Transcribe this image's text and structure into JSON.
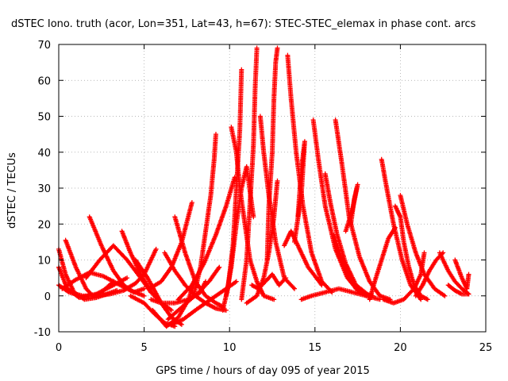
{
  "chart_data": {
    "type": "scatter",
    "title": "dSTEC Iono. truth (acor, Lon=351, Lat=43, h=67): STEC-STEC_elemax in phase cont. arcs",
    "xlabel": "GPS time / hours of day 095 of year 2015",
    "ylabel": "dSTEC  / TECUs",
    "xlim": [
      0,
      25
    ],
    "ylim": [
      -10,
      70
    ],
    "xticks": [
      0,
      5,
      10,
      15,
      20,
      25
    ],
    "yticks": [
      -10,
      0,
      10,
      20,
      30,
      40,
      50,
      60,
      70
    ],
    "grid": true,
    "marker": "+",
    "color": "#ff0000",
    "arcs": [
      {
        "x": [
          0.0,
          0.4,
          0.9,
          1.5,
          2.2,
          2.8,
          3.4
        ],
        "y": [
          13,
          6,
          1,
          -1,
          -0.5,
          0.5,
          1.5
        ]
      },
      {
        "x": [
          0.0,
          0.5,
          1.2,
          2.2,
          3.2,
          4.0
        ],
        "y": [
          8,
          2,
          -0.5,
          0.5,
          3,
          5
        ]
      },
      {
        "x": [
          0.4,
          1.0,
          1.6,
          2.0,
          2.5,
          3.2
        ],
        "y": [
          15.5,
          8,
          2,
          0,
          1,
          4
        ]
      },
      {
        "x": [
          0.2,
          1.0,
          1.8,
          2.6,
          3.4,
          4.2,
          5.0
        ],
        "y": [
          2,
          4.5,
          6.5,
          5.5,
          3.5,
          1.5,
          0
        ]
      },
      {
        "x": [
          1.8,
          2.5,
          3.2,
          3.8,
          4.4,
          5.0
        ],
        "y": [
          22,
          14,
          7,
          3,
          1,
          2
        ]
      },
      {
        "x": [
          1.6,
          2.4,
          3.2,
          4.0,
          4.8,
          5.4
        ],
        "y": [
          5,
          10,
          14,
          10,
          5,
          1
        ]
      },
      {
        "x": [
          3.7,
          4.2,
          4.8,
          5.4,
          6.0,
          6.6
        ],
        "y": [
          18,
          12,
          6,
          1,
          -2,
          -4
        ]
      },
      {
        "x": [
          4.5,
          5.2,
          6.0,
          6.6,
          7.2
        ],
        "y": [
          10,
          5,
          -2,
          -6,
          -8
        ]
      },
      {
        "x": [
          4.2,
          5.0,
          5.6,
          6.2,
          6.8
        ],
        "y": [
          0,
          -2,
          -5,
          -7.5,
          -8.5
        ]
      },
      {
        "x": [
          5.7,
          5.3,
          5.0,
          4.5,
          3.8,
          3.0,
          2.2,
          1.4,
          0.6,
          0.0
        ],
        "y": [
          13,
          9,
          6,
          3.5,
          1.5,
          0.5,
          0,
          0,
          1,
          3
        ]
      },
      {
        "x": [
          6.2,
          6.8,
          7.4,
          8.0,
          8.6,
          9.2,
          9.8
        ],
        "y": [
          12,
          7,
          3,
          0,
          -2,
          -3.5,
          -4
        ]
      },
      {
        "x": [
          6.8,
          7.4,
          8.0,
          8.6,
          9.2,
          9.6
        ],
        "y": [
          22,
          12,
          4,
          0,
          -2,
          -3
        ]
      },
      {
        "x": [
          5.5,
          6.3,
          7.0,
          7.6,
          8.0
        ],
        "y": [
          -4,
          -8.5,
          -6,
          -1,
          5
        ]
      },
      {
        "x": [
          6.6,
          7.3,
          8.0,
          8.6,
          9.2,
          9.8,
          10.4
        ],
        "y": [
          -8,
          -6.5,
          -4,
          -2,
          0,
          2,
          4
        ]
      },
      {
        "x": [
          6.4,
          7.0,
          7.6,
          8.2,
          8.8,
          9.4
        ],
        "y": [
          -6.5,
          -4,
          -1.5,
          1,
          4,
          8
        ]
      },
      {
        "x": [
          7.8,
          7.2,
          6.6,
          6.0,
          5.3
        ],
        "y": [
          26,
          15,
          8,
          4,
          2
        ]
      },
      {
        "x": [
          7.9,
          8.3,
          8.6,
          8.9,
          9.1,
          9.2
        ],
        "y": [
          0,
          8,
          18,
          28,
          38,
          45
        ]
      },
      {
        "x": [
          7.0,
          7.8,
          8.5,
          9.2,
          9.8,
          10.3
        ],
        "y": [
          -1,
          3,
          9,
          17,
          25,
          33
        ]
      },
      {
        "x": [
          8.6,
          8.3,
          7.6,
          6.8,
          6.0,
          5.4
        ],
        "y": [
          4,
          1,
          -1,
          -2,
          -2,
          -1
        ]
      },
      {
        "x": [
          9.6,
          9.9,
          10.2,
          10.4,
          10.6,
          10.7
        ],
        "y": [
          -4,
          2,
          14,
          30,
          46,
          63
        ]
      },
      {
        "x": [
          9.8,
          10.1,
          10.4,
          10.7,
          11.0,
          11.4
        ],
        "y": [
          0,
          8,
          20,
          30,
          36,
          22
        ]
      },
      {
        "x": [
          10.1,
          10.4,
          10.6,
          10.9,
          11.2,
          11.6,
          12.0,
          12.6
        ],
        "y": [
          47,
          40,
          30,
          20,
          10,
          4,
          0,
          -1
        ]
      },
      {
        "x": [
          10.7,
          11.0,
          11.2,
          11.4,
          11.5,
          11.6
        ],
        "y": [
          -1,
          10,
          26,
          42,
          58,
          69
        ]
      },
      {
        "x": [
          11.3,
          11.7,
          12.1,
          12.5,
          12.9,
          13.3
        ],
        "y": [
          3,
          2,
          4,
          6,
          3,
          5
        ]
      },
      {
        "x": [
          11.8,
          12.0,
          12.3,
          12.7,
          13.2,
          13.8
        ],
        "y": [
          50,
          40,
          28,
          15,
          5,
          2
        ]
      },
      {
        "x": [
          12.2,
          12.3,
          12.5,
          12.6,
          12.7,
          12.8
        ],
        "y": [
          10,
          25,
          40,
          55,
          65,
          69
        ]
      },
      {
        "x": [
          12.8,
          12.6,
          12.3,
          12.0,
          11.6,
          11.0
        ],
        "y": [
          32,
          22,
          12,
          5,
          0,
          -2
        ]
      },
      {
        "x": [
          13.4,
          13.6,
          13.9,
          14.3,
          14.8,
          15.4,
          16.0
        ],
        "y": [
          67,
          55,
          40,
          25,
          12,
          4,
          1
        ]
      },
      {
        "x": [
          13.2,
          13.6,
          14.0,
          14.6,
          15.4
        ],
        "y": [
          14,
          18,
          14,
          8,
          3
        ]
      },
      {
        "x": [
          14.0,
          14.2,
          14.4,
          14.2,
          13.8
        ],
        "y": [
          22,
          35,
          43,
          28,
          15
        ]
      },
      {
        "x": [
          14.2,
          14.8,
          15.6,
          16.4,
          17.2,
          18.0
        ],
        "y": [
          -1,
          0,
          1,
          2,
          1,
          0
        ]
      },
      {
        "x": [
          14.9,
          15.2,
          15.6,
          16.2,
          16.9,
          17.6,
          18.4
        ],
        "y": [
          49,
          38,
          25,
          13,
          5,
          1,
          0
        ]
      },
      {
        "x": [
          15.6,
          15.9,
          16.3,
          16.8,
          17.4,
          18.2
        ],
        "y": [
          34,
          26,
          17,
          9,
          3,
          0
        ]
      },
      {
        "x": [
          16.1,
          16.5,
          16.9,
          17.4,
          18.0,
          18.8
        ],
        "y": [
          17,
          11,
          6,
          2,
          0,
          -1
        ]
      },
      {
        "x": [
          16.2,
          16.6,
          17.0,
          17.6,
          18.2,
          18.8,
          19.4
        ],
        "y": [
          49,
          36,
          22,
          11,
          4,
          0,
          -1
        ]
      },
      {
        "x": [
          17.1,
          17.3,
          17.5,
          17.2,
          16.8
        ],
        "y": [
          20,
          27,
          31,
          24,
          18
        ]
      },
      {
        "x": [
          18.2,
          18.5,
          18.9,
          19.3,
          19.7
        ],
        "y": [
          -1,
          4,
          10,
          16,
          19
        ]
      },
      {
        "x": [
          18.9,
          19.2,
          19.6,
          20.1,
          20.6,
          21.2
        ],
        "y": [
          38,
          30,
          20,
          10,
          3,
          -1
        ]
      },
      {
        "x": [
          19.7,
          20.0,
          20.2,
          20.5,
          20.8,
          21.2,
          21.6
        ],
        "y": [
          25,
          22,
          15,
          8,
          3,
          0,
          -1
        ]
      },
      {
        "x": [
          20.0,
          20.4,
          20.9,
          21.4,
          22.0,
          22.6
        ],
        "y": [
          28,
          20,
          12,
          6,
          2,
          0
        ]
      },
      {
        "x": [
          19.0,
          19.6,
          20.2,
          20.8,
          21.2,
          21.4
        ],
        "y": [
          -1,
          -2,
          -1,
          2,
          6,
          12
        ]
      },
      {
        "x": [
          20.9,
          21.3,
          21.7,
          22.1,
          22.5
        ],
        "y": [
          0,
          3,
          7,
          10,
          12
        ]
      },
      {
        "x": [
          22.3,
          22.8,
          23.2,
          23.6,
          24.0
        ],
        "y": [
          12,
          7,
          4,
          2,
          0.5
        ]
      },
      {
        "x": [
          22.8,
          23.2,
          23.6,
          24.0
        ],
        "y": [
          3,
          1.5,
          0.5,
          0.5
        ]
      },
      {
        "x": [
          23.2,
          23.6,
          23.9,
          24.0
        ],
        "y": [
          10,
          5,
          2,
          6
        ]
      }
    ]
  }
}
